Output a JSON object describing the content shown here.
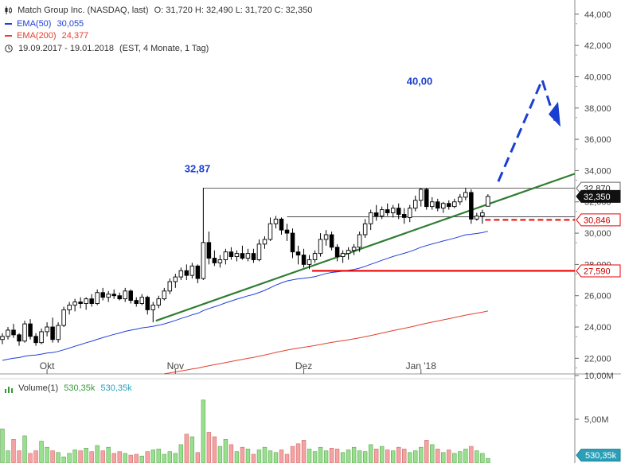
{
  "header": {
    "instrument": "Match Group Inc. (NASDAQ, last)",
    "ohlc": "O: 31,720  H: 32,490  L: 31,720  C: 32,350",
    "ema50_label": "EMA(50)",
    "ema50_value": "30,055",
    "ema200_label": "EMA(200)",
    "ema200_value": "24,377",
    "period": "19.09.2017 - 19.01.2018",
    "period_note": "(EST, 4 Monate, 1 Tag)"
  },
  "volume_header": {
    "label": "Volume(1)",
    "value1": "530,35k",
    "value2": "530,35k"
  },
  "colors": {
    "up_candle": "#ffffff",
    "down_candle": "#000000",
    "ema50": "#1f3fd8",
    "ema200": "#e0412f",
    "trendline": "#2e7d32",
    "support": "#ee0000",
    "annotation": "#1a3fd0",
    "vol_up": "#9adf8f",
    "vol_down": "#f4a3a3"
  },
  "chart_data": {
    "type": "candlestick",
    "x_tick_labels": [
      "Okt",
      "Nov",
      "Dez",
      "Jan '18"
    ],
    "x_tick_index": [
      8,
      31,
      54,
      75
    ],
    "y_tick_labels": [
      "44,000",
      "42,000",
      "40,000",
      "38,000",
      "36,000",
      "34,000",
      "32,000",
      "30,000",
      "28,000",
      "26,000",
      "24,000",
      "22,000"
    ],
    "ylim": [
      21.0,
      44.5
    ],
    "price_badges": [
      {
        "label": "32,870",
        "value": 32.87,
        "style": "gray"
      },
      {
        "label": "32,350",
        "value": 32.35,
        "style": "black"
      },
      {
        "label": "30,846",
        "value": 30.846,
        "style": "red"
      },
      {
        "label": "27,590",
        "value": 27.59,
        "style": "red"
      }
    ],
    "annotations": [
      {
        "text": "32,87",
        "value": 32.87
      },
      {
        "text": "40,00",
        "value": 40.0
      }
    ],
    "volume_ticks": [
      "10,00M",
      "5,00M"
    ],
    "volume_last_badge": "530,35k",
    "vol_ylim": [
      0,
      10.0
    ],
    "candles": [
      [
        23.2,
        23.6,
        22.9,
        23.4
      ],
      [
        23.4,
        24.0,
        23.2,
        23.8
      ],
      [
        23.8,
        24.2,
        23.3,
        23.5
      ],
      [
        23.5,
        23.6,
        22.8,
        23.1
      ],
      [
        23.1,
        24.4,
        23.0,
        24.2
      ],
      [
        24.2,
        24.5,
        23.2,
        23.4
      ],
      [
        23.4,
        23.6,
        22.8,
        23.0
      ],
      [
        23.0,
        23.9,
        22.9,
        23.7
      ],
      [
        23.7,
        24.3,
        23.4,
        24.0
      ],
      [
        24.0,
        24.6,
        23.0,
        23.2
      ],
      [
        23.2,
        24.3,
        23.0,
        24.1
      ],
      [
        24.1,
        25.3,
        24.0,
        25.1
      ],
      [
        25.1,
        25.6,
        24.8,
        25.4
      ],
      [
        25.4,
        25.8,
        25.0,
        25.6
      ],
      [
        25.6,
        25.9,
        25.2,
        25.5
      ],
      [
        25.5,
        25.9,
        25.1,
        25.8
      ],
      [
        25.8,
        26.1,
        25.3,
        25.5
      ],
      [
        25.5,
        26.4,
        25.4,
        26.2
      ],
      [
        26.2,
        26.5,
        25.7,
        25.9
      ],
      [
        25.9,
        26.3,
        25.6,
        26.1
      ],
      [
        26.1,
        26.4,
        25.8,
        26.0
      ],
      [
        26.0,
        26.2,
        25.7,
        25.8
      ],
      [
        25.8,
        26.5,
        25.6,
        26.3
      ],
      [
        26.3,
        26.4,
        25.5,
        25.7
      ],
      [
        25.7,
        25.9,
        25.3,
        25.5
      ],
      [
        25.5,
        26.1,
        25.4,
        25.9
      ],
      [
        25.9,
        26.0,
        24.8,
        25.1
      ],
      [
        25.1,
        25.6,
        24.3,
        25.4
      ],
      [
        25.4,
        26.0,
        25.2,
        25.8
      ],
      [
        25.8,
        26.5,
        25.7,
        26.3
      ],
      [
        26.3,
        27.1,
        26.1,
        26.9
      ],
      [
        26.9,
        27.4,
        26.5,
        27.2
      ],
      [
        27.2,
        27.8,
        27.0,
        27.6
      ],
      [
        27.6,
        28.0,
        27.0,
        27.3
      ],
      [
        27.3,
        28.1,
        27.1,
        27.9
      ],
      [
        27.9,
        28.0,
        26.8,
        27.1
      ],
      [
        27.1,
        32.9,
        27.0,
        29.4
      ],
      [
        29.4,
        30.1,
        28.0,
        28.4
      ],
      [
        28.4,
        28.9,
        27.9,
        28.1
      ],
      [
        28.1,
        28.6,
        27.8,
        28.3
      ],
      [
        28.3,
        29.0,
        28.0,
        28.8
      ],
      [
        28.8,
        29.1,
        28.3,
        28.5
      ],
      [
        28.5,
        28.9,
        28.2,
        28.7
      ],
      [
        28.7,
        29.2,
        28.3,
        28.4
      ],
      [
        28.4,
        29.0,
        28.2,
        28.7
      ],
      [
        28.7,
        29.0,
        28.1,
        28.3
      ],
      [
        28.3,
        29.6,
        28.2,
        29.3
      ],
      [
        29.3,
        29.8,
        29.0,
        29.6
      ],
      [
        29.6,
        31.0,
        29.5,
        30.6
      ],
      [
        30.6,
        31.1,
        30.3,
        30.9
      ],
      [
        30.9,
        31.0,
        29.9,
        30.2
      ],
      [
        30.2,
        30.6,
        29.5,
        30.0
      ],
      [
        30.0,
        30.3,
        28.4,
        28.8
      ],
      [
        28.8,
        29.2,
        28.0,
        28.6
      ],
      [
        28.6,
        29.0,
        27.8,
        28.0
      ],
      [
        28.0,
        28.6,
        27.7,
        28.3
      ],
      [
        28.3,
        28.9,
        28.1,
        28.7
      ],
      [
        28.7,
        30.0,
        28.5,
        29.6
      ],
      [
        29.6,
        30.2,
        29.2,
        29.9
      ],
      [
        29.9,
        30.1,
        28.9,
        29.1
      ],
      [
        29.1,
        29.3,
        28.2,
        28.5
      ],
      [
        28.5,
        28.9,
        28.1,
        28.7
      ],
      [
        28.7,
        29.1,
        28.3,
        28.9
      ],
      [
        28.9,
        29.3,
        28.6,
        29.1
      ],
      [
        29.1,
        30.1,
        28.8,
        29.9
      ],
      [
        29.9,
        30.9,
        29.7,
        30.6
      ],
      [
        30.6,
        31.5,
        30.2,
        31.3
      ],
      [
        31.3,
        31.8,
        30.8,
        31.1
      ],
      [
        31.1,
        31.7,
        30.9,
        31.5
      ],
      [
        31.5,
        31.9,
        31.1,
        31.3
      ],
      [
        31.3,
        31.8,
        31.0,
        31.6
      ],
      [
        31.6,
        31.9,
        30.9,
        31.2
      ],
      [
        31.2,
        31.6,
        30.6,
        31.0
      ],
      [
        31.0,
        31.8,
        30.7,
        31.6
      ],
      [
        31.6,
        32.4,
        31.4,
        32.1
      ],
      [
        32.1,
        32.9,
        31.7,
        32.8
      ],
      [
        32.8,
        32.9,
        31.5,
        31.7
      ],
      [
        31.7,
        32.3,
        31.5,
        32.0
      ],
      [
        32.0,
        32.2,
        31.4,
        31.6
      ],
      [
        31.6,
        32.0,
        31.3,
        31.9
      ],
      [
        31.9,
        32.1,
        31.5,
        31.7
      ],
      [
        31.7,
        32.2,
        31.6,
        32.0
      ],
      [
        32.0,
        32.5,
        31.8,
        32.3
      ],
      [
        32.3,
        32.9,
        32.1,
        32.6
      ],
      [
        32.6,
        32.8,
        30.6,
        30.9
      ],
      [
        30.9,
        31.3,
        30.8,
        31.1
      ],
      [
        31.1,
        31.5,
        30.6,
        31.3
      ],
      [
        31.72,
        32.49,
        31.72,
        32.35
      ]
    ],
    "volumes": [
      3.9,
      1.4,
      2.7,
      1.4,
      3.1,
      1.1,
      1.4,
      2.5,
      1.8,
      1.4,
      1.2,
      0.7,
      1.1,
      1.5,
      1.4,
      1.7,
      1.3,
      2.0,
      1.4,
      1.8,
      1.1,
      1.3,
      1.1,
      0.9,
      1.0,
      0.8,
      1.3,
      1.5,
      1.6,
      1.0,
      1.3,
      1.1,
      2.1,
      3.3,
      3.0,
      1.2,
      7.2,
      3.5,
      3.0,
      1.9,
      2.7,
      2.1,
      1.3,
      1.8,
      1.6,
      1.0,
      1.5,
      1.8,
      1.4,
      1.2,
      1.5,
      1.0,
      1.9,
      2.2,
      2.6,
      1.6,
      1.3,
      1.8,
      1.4,
      1.7,
      1.6,
      1.2,
      1.5,
      1.8,
      1.4,
      1.3,
      2.1,
      1.6,
      1.9,
      1.5,
      1.4,
      1.8,
      1.6,
      1.2,
      1.4,
      1.8,
      2.6,
      2.1,
      1.6,
      1.2,
      1.5,
      1.1,
      1.3,
      1.6,
      1.9,
      1.4,
      1.1,
      0.53
    ]
  }
}
